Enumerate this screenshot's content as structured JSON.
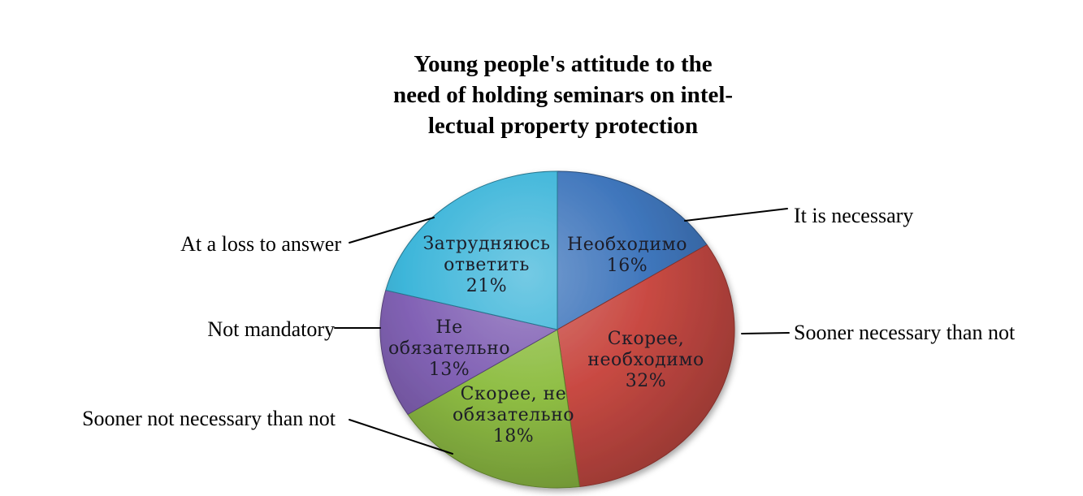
{
  "chart_data": {
    "type": "pie",
    "title": "Young people's attitude to the need of holding seminars on intellectual property protection",
    "title_lines": [
      "Young people's attitude to the",
      "need of holding seminars on intel-",
      "lectual property protection"
    ],
    "direction": "clockwise",
    "start_angle_deg": 0,
    "legend_position": "callout-labels",
    "grid": false,
    "slices": [
      {
        "label_en": "It is necessary",
        "label_ru": "Необходимо",
        "display_lines": [
          "Необходимо",
          "16%"
        ],
        "value_pct": 16,
        "color": "#3f76bc"
      },
      {
        "label_en": "Sooner necessary than not",
        "label_ru": "Скорее, необходимо",
        "display_lines": [
          "Скорее,",
          "необходимо",
          "32%"
        ],
        "value_pct": 32,
        "color": "#c94a43"
      },
      {
        "label_en": "Sooner not necessary than not",
        "label_ru": "Скорее, не обязательно",
        "display_lines": [
          "Скорее, не",
          "обязательно",
          "18%"
        ],
        "value_pct": 18,
        "color": "#8fbe44"
      },
      {
        "label_en": "Not mandatory",
        "label_ru": "Не обязательно",
        "display_lines": [
          "Не",
          "обязательно",
          "13%"
        ],
        "value_pct": 13,
        "color": "#8262b5"
      },
      {
        "label_en": "At a loss to answer",
        "label_ru": "Затрудняюсь ответить",
        "display_lines": [
          "Затрудняюсь",
          "ответить",
          "21%"
        ],
        "value_pct": 21,
        "color": "#3eb6da"
      }
    ]
  }
}
